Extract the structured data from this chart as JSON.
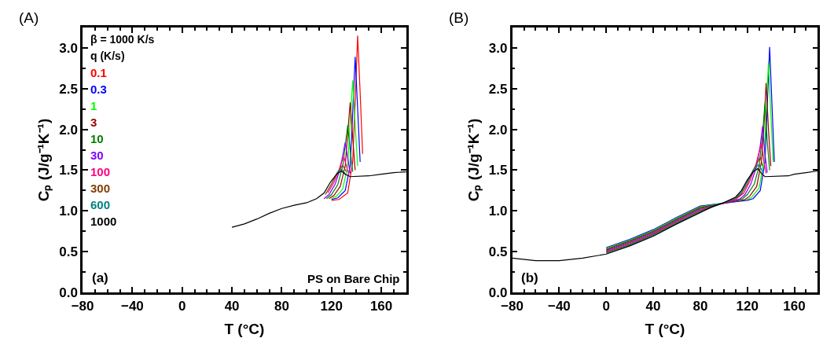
{
  "chart_data": [
    {
      "type": "line",
      "title": "(A)",
      "xlabel": "T (°C)",
      "ylabel": "Cₚ (J/g⁻¹K⁻¹)",
      "xlim": [
        -80,
        180
      ],
      "ylim": [
        0,
        3.25
      ],
      "xticks": [
        {
          "value": -80,
          "label": "−80"
        },
        {
          "value": -70,
          "label": null
        },
        {
          "value": -60,
          "label": null
        },
        {
          "value": -50,
          "label": null
        },
        {
          "value": -40,
          "label": "−40"
        },
        {
          "value": -30,
          "label": null
        },
        {
          "value": -20,
          "label": null
        },
        {
          "value": -10,
          "label": null
        },
        0,
        {
          "value": 10,
          "label": null
        },
        {
          "value": 20,
          "label": null
        },
        {
          "value": 30,
          "label": null
        },
        40,
        {
          "value": 50,
          "label": null
        },
        {
          "value": 60,
          "label": null
        },
        {
          "value": 70,
          "label": null
        },
        80,
        {
          "value": 90,
          "label": null
        },
        {
          "value": 100,
          "label": null
        },
        {
          "value": 110,
          "label": null
        },
        120,
        {
          "value": 130,
          "label": null
        },
        {
          "value": 140,
          "label": null
        },
        {
          "value": 150,
          "label": null
        },
        160,
        {
          "value": 170,
          "label": null
        }
      ],
      "yticks": [
        {
          "value": 0,
          "label": "0.0"
        },
        {
          "value": 0.25,
          "label": null
        },
        0.5,
        {
          "value": 0.75,
          "label": null
        },
        {
          "value": 1,
          "label": "1.0"
        },
        {
          "value": 1.25,
          "label": null
        },
        1.5,
        {
          "value": 1.75,
          "label": null
        },
        {
          "value": 2,
          "label": "2.0"
        },
        {
          "value": 2.25,
          "label": null
        },
        2.5,
        {
          "value": 2.75,
          "label": null
        },
        {
          "value": 3,
          "label": "3.0"
        }
      ],
      "legend": "top left",
      "legend_title": "β = 1000 K/s\nq (K/s)",
      "annotations": [
        "(a)",
        "PS on Bare Chip"
      ],
      "series": [
        {
          "name": "0.1",
          "color": "#ff0000",
          "x": [
            120,
            126,
            133,
            137,
            139,
            141,
            143,
            145
          ],
          "values": [
            1.13,
            1.14,
            1.22,
            1.6,
            2.35,
            3.15,
            2.45,
            1.7
          ]
        },
        {
          "name": "0.3",
          "color": "#0000ff",
          "x": [
            120,
            125,
            131,
            135,
            137,
            139,
            141,
            143
          ],
          "values": [
            1.14,
            1.16,
            1.25,
            1.55,
            2.2,
            2.89,
            2.25,
            1.6
          ]
        },
        {
          "name": "1",
          "color": "#00ff00",
          "x": [
            120,
            124,
            129,
            133,
            135,
            137,
            139,
            141
          ],
          "values": [
            1.15,
            1.18,
            1.27,
            1.55,
            2.1,
            2.6,
            2.05,
            1.55
          ]
        },
        {
          "name": "3",
          "color": "#990000",
          "x": [
            118,
            122,
            127,
            131,
            133,
            135,
            137,
            139
          ],
          "values": [
            1.15,
            1.19,
            1.3,
            1.55,
            1.95,
            2.33,
            1.9,
            1.5
          ]
        },
        {
          "name": "10",
          "color": "#008000",
          "x": [
            116,
            120,
            125,
            129,
            131,
            133,
            135,
            137
          ],
          "values": [
            1.15,
            1.2,
            1.32,
            1.55,
            1.8,
            2.05,
            1.75,
            1.48
          ]
        },
        {
          "name": "30",
          "color": "#8000ff",
          "x": [
            114,
            118,
            123,
            127,
            129,
            131,
            133,
            135
          ],
          "values": [
            1.15,
            1.2,
            1.33,
            1.52,
            1.68,
            1.84,
            1.65,
            1.46
          ]
        },
        {
          "name": "100",
          "color": "#ff0080",
          "x": [
            117,
            122,
            126,
            128,
            130,
            132,
            134
          ],
          "values": [
            1.22,
            1.35,
            1.5,
            1.6,
            1.66,
            1.55,
            1.44
          ]
        },
        {
          "name": "300",
          "color": "#804000",
          "x": [
            115,
            120,
            125,
            129,
            132
          ],
          "values": [
            1.2,
            1.33,
            1.48,
            1.56,
            1.48
          ]
        },
        {
          "name": "600",
          "color": "#008080",
          "x": [
            124,
            128,
            131
          ],
          "values": [
            1.46,
            1.51,
            1.46
          ]
        },
        {
          "name": "1000",
          "color": "#000000",
          "x": [
            40,
            50,
            60,
            70,
            80,
            90,
            100,
            108,
            114,
            119,
            124,
            128,
            131,
            135,
            150,
            160,
            170,
            180
          ],
          "values": [
            0.8,
            0.84,
            0.9,
            0.97,
            1.03,
            1.07,
            1.1,
            1.15,
            1.22,
            1.35,
            1.45,
            1.49,
            1.45,
            1.42,
            1.43,
            1.45,
            1.47,
            1.48
          ]
        }
      ]
    },
    {
      "type": "line",
      "title": "(B)",
      "xlabel": "T (°C)",
      "ylabel": "Cₚ (J/g⁻¹K⁻¹)",
      "xlim": [
        -80,
        180
      ],
      "ylim": [
        0,
        3.25
      ],
      "xticks": [
        {
          "value": -80,
          "label": "−80"
        },
        {
          "value": -70,
          "label": null
        },
        {
          "value": -60,
          "label": null
        },
        {
          "value": -50,
          "label": null
        },
        {
          "value": -40,
          "label": "−40"
        },
        {
          "value": -30,
          "label": null
        },
        {
          "value": -20,
          "label": null
        },
        {
          "value": -10,
          "label": null
        },
        0,
        {
          "value": 10,
          "label": null
        },
        {
          "value": 20,
          "label": null
        },
        {
          "value": 30,
          "label": null
        },
        40,
        {
          "value": 50,
          "label": null
        },
        {
          "value": 60,
          "label": null
        },
        {
          "value": 70,
          "label": null
        },
        80,
        {
          "value": 90,
          "label": null
        },
        {
          "value": 100,
          "label": null
        },
        {
          "value": 110,
          "label": null
        },
        120,
        {
          "value": 130,
          "label": null
        },
        {
          "value": 140,
          "label": null
        },
        {
          "value": 150,
          "label": null
        },
        160,
        {
          "value": 170,
          "label": null
        }
      ],
      "yticks": [
        {
          "value": 0,
          "label": "0.0"
        },
        {
          "value": 0.25,
          "label": null
        },
        0.5,
        {
          "value": 0.75,
          "label": null
        },
        {
          "value": 1,
          "label": "1.0"
        },
        {
          "value": 1.25,
          "label": null
        },
        1.5,
        {
          "value": 1.75,
          "label": null
        },
        {
          "value": 2,
          "label": "2.0"
        },
        {
          "value": 2.25,
          "label": null
        },
        2.5,
        {
          "value": 2.75,
          "label": null
        },
        {
          "value": 3,
          "label": "3.0"
        }
      ],
      "annotations": [
        "(b)"
      ],
      "series": [
        {
          "color": "#0000ff",
          "x": [
            0,
            20,
            40,
            60,
            80,
            120,
            125,
            131,
            135,
            137,
            139,
            141,
            143
          ],
          "values": [
            0.55,
            0.65,
            0.77,
            0.92,
            1.06,
            1.13,
            1.15,
            1.25,
            1.6,
            2.3,
            3.01,
            2.3,
            1.6
          ]
        },
        {
          "color": "#00ff00",
          "x": [
            0,
            20,
            40,
            60,
            80,
            120,
            124,
            130,
            134,
            136,
            138,
            140,
            142
          ],
          "values": [
            0.54,
            0.64,
            0.76,
            0.91,
            1.05,
            1.14,
            1.17,
            1.28,
            1.6,
            2.2,
            2.83,
            2.2,
            1.6
          ]
        },
        {
          "color": "#990000",
          "x": [
            0,
            20,
            40,
            60,
            80,
            118,
            122,
            128,
            132,
            134,
            136,
            138,
            140
          ],
          "values": [
            0.53,
            0.63,
            0.75,
            0.9,
            1.04,
            1.14,
            1.18,
            1.3,
            1.6,
            2.0,
            2.57,
            2.0,
            1.55
          ]
        },
        {
          "color": "#008000",
          "x": [
            0,
            20,
            40,
            60,
            80,
            116,
            120,
            126,
            130,
            133,
            135,
            137,
            139
          ],
          "values": [
            0.52,
            0.62,
            0.74,
            0.89,
            1.03,
            1.15,
            1.2,
            1.33,
            1.55,
            1.95,
            2.32,
            1.85,
            1.5
          ]
        },
        {
          "color": "#8000ff",
          "x": [
            0,
            20,
            40,
            60,
            80,
            110,
            114,
            118,
            123,
            128,
            131,
            133,
            135,
            137
          ],
          "values": [
            0.51,
            0.61,
            0.73,
            0.88,
            1.02,
            1.13,
            1.15,
            1.2,
            1.33,
            1.55,
            1.8,
            2.04,
            1.7,
            1.47
          ]
        },
        {
          "color": "#ff0080",
          "x": [
            0,
            20,
            40,
            60,
            80,
            110,
            117,
            122,
            127,
            130,
            132,
            134,
            136
          ],
          "values": [
            0.5,
            0.6,
            0.72,
            0.87,
            1.01,
            1.14,
            1.22,
            1.36,
            1.55,
            1.72,
            1.83,
            1.62,
            1.46
          ]
        },
        {
          "color": "#804000",
          "x": [
            0,
            20,
            40,
            60,
            80,
            110,
            115,
            120,
            125,
            131,
            133
          ],
          "values": [
            0.49,
            0.59,
            0.71,
            0.86,
            1.0,
            1.15,
            1.21,
            1.33,
            1.5,
            1.66,
            1.55
          ]
        },
        {
          "color": "#008080",
          "x": [
            0,
            20,
            40,
            60,
            80,
            110,
            115,
            120,
            125,
            130,
            133
          ],
          "values": [
            0.48,
            0.58,
            0.7,
            0.85,
            0.99,
            1.16,
            1.23,
            1.36,
            1.5,
            1.57,
            1.48
          ]
        },
        {
          "color": "#000000",
          "x": [
            -80,
            -60,
            -40,
            -20,
            0,
            20,
            40,
            60,
            80,
            90,
            100,
            110,
            115,
            120,
            125,
            129,
            132,
            135,
            155,
            160,
            170,
            180
          ],
          "values": [
            0.42,
            0.39,
            0.39,
            0.42,
            0.47,
            0.57,
            0.69,
            0.84,
            0.98,
            1.05,
            1.1,
            1.17,
            1.25,
            1.38,
            1.48,
            1.52,
            1.46,
            1.42,
            1.43,
            1.45,
            1.47,
            1.49
          ]
        }
      ]
    }
  ]
}
